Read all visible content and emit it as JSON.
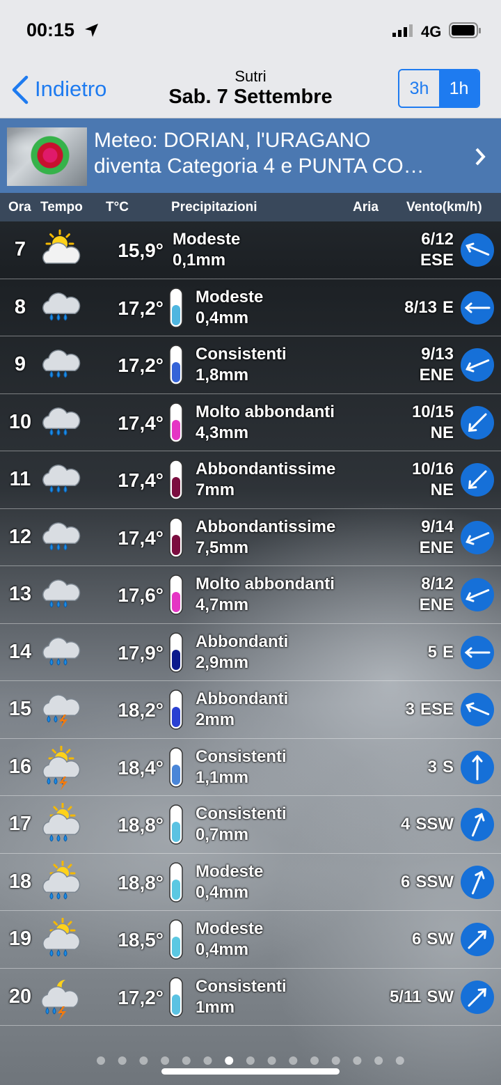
{
  "status_bar": {
    "time": "00:15",
    "network": "4G"
  },
  "nav": {
    "back": "Indietro",
    "location": "Sutri",
    "date": "Sab. 7 Settembre",
    "modes": [
      "3h",
      "1h"
    ],
    "active_mode": 1
  },
  "banner": {
    "line1": "Meteo: DORIAN, l'URAGANO",
    "line2": "diventa Categoria 4 e PUNTA CO…"
  },
  "table": {
    "headers": [
      "Ora",
      "Tempo",
      "T°C",
      "Precipitazioni",
      "Aria",
      "Vento(km/h)"
    ],
    "rows": [
      {
        "hour": "7",
        "icon": "sun-cloud",
        "temp": "15,9°",
        "precip_label": "Modeste",
        "precip_amount": "0,1mm",
        "wind_speed": "6/12",
        "wind_dir": "ESE",
        "wind_arrow_deg": 292.5
      },
      {
        "hour": "8",
        "icon": "rain",
        "temp": "17,2°",
        "gauge_color": "#4fb6e0",
        "precip_label": "Modeste",
        "precip_amount": "0,4mm",
        "wind_speed": "8/13",
        "wind_dir": "E",
        "wind_arrow_deg": 270
      },
      {
        "hour": "9",
        "icon": "rain",
        "temp": "17,2°",
        "gauge_color": "#3564d8",
        "precip_label": "Consistenti",
        "precip_amount": "1,8mm",
        "wind_speed": "9/13",
        "wind_dir": "ENE",
        "wind_arrow_deg": 247.5
      },
      {
        "hour": "10",
        "icon": "rain",
        "temp": "17,4°",
        "gauge_color": "#e535c4",
        "precip_label": "Molto abbondanti",
        "precip_amount": "4,3mm",
        "wind_speed": "10/15",
        "wind_dir": "NE",
        "wind_arrow_deg": 225
      },
      {
        "hour": "11",
        "icon": "rain",
        "temp": "17,4°",
        "gauge_color": "#7b0d3f",
        "precip_label": "Abbondantissime",
        "precip_amount": "7mm",
        "wind_speed": "10/16",
        "wind_dir": "NE",
        "wind_arrow_deg": 225
      },
      {
        "hour": "12",
        "icon": "rain",
        "temp": "17,4°",
        "gauge_color": "#7b0d3f",
        "precip_label": "Abbondantissime",
        "precip_amount": "7,5mm",
        "wind_speed": "9/14",
        "wind_dir": "ENE",
        "wind_arrow_deg": 247.5
      },
      {
        "hour": "13",
        "icon": "rain",
        "temp": "17,6°",
        "gauge_color": "#e535c4",
        "precip_label": "Molto abbondanti",
        "precip_amount": "4,7mm",
        "wind_speed": "8/12",
        "wind_dir": "ENE",
        "wind_arrow_deg": 247.5
      },
      {
        "hour": "14",
        "icon": "rain",
        "temp": "17,9°",
        "gauge_color": "#0b1a8c",
        "precip_label": "Abbondanti",
        "precip_amount": "2,9mm",
        "wind_speed": "5",
        "wind_dir": "E",
        "wind_arrow_deg": 270
      },
      {
        "hour": "15",
        "icon": "storm",
        "temp": "18,2°",
        "gauge_color": "#2940d2",
        "precip_label": "Abbondanti",
        "precip_amount": "2mm",
        "wind_speed": "3",
        "wind_dir": "ESE",
        "wind_arrow_deg": 292.5
      },
      {
        "hour": "16",
        "icon": "sun-storm",
        "temp": "18,4°",
        "gauge_color": "#4a86d8",
        "precip_label": "Consistenti",
        "precip_amount": "1,1mm",
        "wind_speed": "3",
        "wind_dir": "S",
        "wind_arrow_deg": 0
      },
      {
        "hour": "17",
        "icon": "sun-rain",
        "temp": "18,8°",
        "gauge_color": "#5bc2e2",
        "precip_label": "Consistenti",
        "precip_amount": "0,7mm",
        "wind_speed": "4",
        "wind_dir": "SSW",
        "wind_arrow_deg": 22.5
      },
      {
        "hour": "18",
        "icon": "sun-rain",
        "temp": "18,8°",
        "gauge_color": "#5bc8e2",
        "precip_label": "Modeste",
        "precip_amount": "0,4mm",
        "wind_speed": "6",
        "wind_dir": "SSW",
        "wind_arrow_deg": 22.5
      },
      {
        "hour": "19",
        "icon": "sun-rain",
        "temp": "18,5°",
        "gauge_color": "#5bc8e2",
        "precip_label": "Modeste",
        "precip_amount": "0,4mm",
        "wind_speed": "6",
        "wind_dir": "SW",
        "wind_arrow_deg": 45
      },
      {
        "hour": "20",
        "icon": "moon-storm",
        "temp": "17,2°",
        "gauge_color": "#5bc2e2",
        "precip_label": "Consistenti",
        "precip_amount": "1mm",
        "wind_speed": "5/11",
        "wind_dir": "SW",
        "wind_arrow_deg": 45
      }
    ]
  }
}
